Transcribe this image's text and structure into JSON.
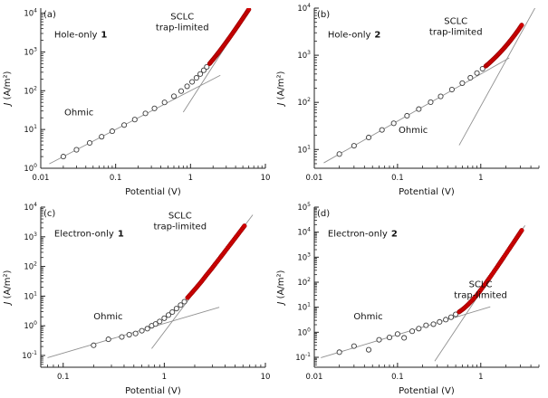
{
  "figure": {
    "background": "#ffffff",
    "xlabel": "Potential (V)",
    "ylabel_italic": "J",
    "ylabel_rest": " (A/m²)",
    "colors": {
      "red_marker": "#d40000",
      "red_marker_stroke": "#8f0000",
      "open_marker_stroke": "#3c3c3c",
      "fit_line": "#909090",
      "axis": "#222222",
      "text": "#111111"
    }
  },
  "chart_data": [
    {
      "id": "a",
      "type": "scatter",
      "log_x": true,
      "log_y": true,
      "panel_label": "(a)",
      "device_prefix": "Hole-only",
      "device_number": "1",
      "xlabel": "Potential (V)",
      "ylabel": "J (A/m²)",
      "xlim": [
        0.01,
        10
      ],
      "ylim": [
        1,
        13500
      ],
      "x_ticks": [
        {
          "v": 0.01,
          "label": "0.01"
        },
        {
          "v": 0.1,
          "label": "0.1"
        },
        {
          "v": 1,
          "label": "1"
        },
        {
          "v": 10,
          "label": "10"
        }
      ],
      "y_tick_exponents": [
        0,
        1,
        2,
        3,
        4
      ],
      "series": [
        {
          "name": "ohmic-region-data",
          "marker": "open-circle",
          "points": [
            [
              0.02,
              2.0
            ],
            [
              0.03,
              3.0
            ],
            [
              0.045,
              4.5
            ],
            [
              0.065,
              6.5
            ],
            [
              0.09,
              9.0
            ],
            [
              0.13,
              13
            ],
            [
              0.18,
              18
            ],
            [
              0.25,
              26
            ],
            [
              0.33,
              35
            ],
            [
              0.45,
              50
            ],
            [
              0.6,
              72
            ],
            [
              0.75,
              98
            ],
            [
              0.9,
              130
            ],
            [
              1.05,
              169
            ],
            [
              1.2,
              215
            ],
            [
              1.35,
              270
            ],
            [
              1.5,
              336
            ],
            [
              1.65,
              412
            ]
          ]
        },
        {
          "name": "sclc-region-data",
          "marker": "filled-red-circle",
          "points": [
            [
              1.8,
              501
            ],
            [
              2.0,
              640
            ],
            [
              2.2,
              806
            ],
            [
              2.4,
              1000
            ],
            [
              2.7,
              1353
            ],
            [
              3.0,
              1785
            ],
            [
              3.3,
              2306
            ],
            [
              3.7,
              3156
            ],
            [
              4.1,
              4200
            ],
            [
              4.5,
              5462
            ],
            [
              5.0,
              7375
            ],
            [
              5.5,
              9701
            ],
            [
              6.0,
              12480
            ]
          ]
        }
      ],
      "fit_lines": [
        {
          "name": "ohmic-fit",
          "p1": [
            0.013,
            1.3
          ],
          "p2": [
            2.5,
            250
          ]
        },
        {
          "name": "sclc-fit",
          "p1": [
            0.8,
            28
          ],
          "p2": [
            6.8,
            17300
          ]
        }
      ],
      "annotations": [
        {
          "name": "sclc-annotation",
          "lines": [
            "SCLC",
            "trap-limited"
          ],
          "fx": 0.63,
          "fy": 0.07
        },
        {
          "name": "ohmic-annotation",
          "lines": [
            "Ohmic"
          ],
          "fx": 0.17,
          "fy": 0.67
        }
      ]
    },
    {
      "id": "b",
      "type": "scatter",
      "log_x": true,
      "log_y": true,
      "panel_label": "(b)",
      "device_prefix": "Hole-only",
      "device_number": "2",
      "xlabel": "Potential (V)",
      "ylabel": "J (A/m²)",
      "xlim": [
        0.01,
        5
      ],
      "ylim": [
        4,
        10000
      ],
      "x_ticks": [
        {
          "v": 0.01,
          "label": "0.01"
        },
        {
          "v": 0.1,
          "label": "0.1"
        },
        {
          "v": 1,
          "label": "1"
        }
      ],
      "y_tick_exponents": [
        1,
        2,
        3,
        4
      ],
      "series": [
        {
          "name": "ohmic-region-data",
          "marker": "open-circle",
          "points": [
            [
              0.02,
              8
            ],
            [
              0.03,
              12
            ],
            [
              0.045,
              18
            ],
            [
              0.065,
              26
            ],
            [
              0.09,
              36
            ],
            [
              0.13,
              52
            ],
            [
              0.18,
              72
            ],
            [
              0.25,
              101
            ],
            [
              0.33,
              134
            ],
            [
              0.45,
              187
            ],
            [
              0.6,
              256
            ],
            [
              0.75,
              333
            ],
            [
              0.9,
              419
            ],
            [
              1.05,
              517
            ]
          ]
        },
        {
          "name": "sclc-region-data",
          "marker": "filled-red-circle",
          "points": [
            [
              1.15,
              590
            ],
            [
              1.25,
              669
            ],
            [
              1.4,
              805
            ],
            [
              1.55,
              958
            ],
            [
              1.7,
              1134
            ],
            [
              1.9,
              1407
            ],
            [
              2.1,
              1727
            ],
            [
              2.3,
              2106
            ],
            [
              2.55,
              2668
            ],
            [
              2.8,
              3342
            ],
            [
              3.1,
              4358
            ]
          ]
        }
      ],
      "fit_lines": [
        {
          "name": "ohmic-fit",
          "p1": [
            0.013,
            5.2
          ],
          "p2": [
            2.2,
            880
          ]
        },
        {
          "name": "sclc-fit",
          "p1": [
            0.55,
            12.3
          ],
          "p2": [
            4.5,
            10200
          ]
        }
      ],
      "annotations": [
        {
          "name": "sclc-annotation",
          "lines": [
            "SCLC",
            "trap-limited"
          ],
          "fx": 0.63,
          "fy": 0.1
        },
        {
          "name": "ohmic-annotation",
          "lines": [
            "Ohmic"
          ],
          "fx": 0.44,
          "fy": 0.78
        }
      ]
    },
    {
      "id": "c",
      "type": "scatter",
      "log_x": true,
      "log_y": true,
      "panel_label": "(c)",
      "device_prefix": "Electron-only",
      "device_number": "1",
      "xlabel": "Potential (V)",
      "ylabel": "J (A/m²)",
      "xlim": [
        0.06,
        10
      ],
      "ylim": [
        0.04,
        10000
      ],
      "x_ticks": [
        {
          "v": 0.1,
          "label": "0.1"
        },
        {
          "v": 1,
          "label": "1"
        },
        {
          "v": 10,
          "label": "10"
        }
      ],
      "y_tick_exponents": [
        -1,
        0,
        1,
        2,
        3,
        4
      ],
      "series": [
        {
          "name": "ohmic-region-data",
          "marker": "open-circle",
          "points": [
            [
              0.2,
              0.22
            ],
            [
              0.28,
              0.35
            ],
            [
              0.38,
              0.42
            ],
            [
              0.45,
              0.5
            ],
            [
              0.52,
              0.55
            ],
            [
              0.6,
              0.68
            ],
            [
              0.68,
              0.8
            ],
            [
              0.75,
              1.0
            ],
            [
              0.82,
              1.15
            ],
            [
              0.9,
              1.4
            ],
            [
              1.0,
              1.8
            ],
            [
              1.1,
              2.3
            ],
            [
              1.2,
              2.9
            ],
            [
              1.32,
              3.8
            ],
            [
              1.45,
              5.0
            ],
            [
              1.58,
              6.5
            ]
          ]
        },
        {
          "name": "sclc-region-data",
          "marker": "filled-red-circle",
          "points": [
            [
              1.7,
              8.9
            ],
            [
              1.9,
              13.6
            ],
            [
              2.1,
              20.2
            ],
            [
              2.35,
              32
            ],
            [
              2.6,
              50
            ],
            [
              2.9,
              79
            ],
            [
              3.2,
              122
            ],
            [
              3.6,
              205
            ],
            [
              4.0,
              327
            ],
            [
              4.5,
              554
            ],
            [
              5.0,
              886
            ],
            [
              5.6,
              1470
            ],
            [
              6.2,
              2326
            ]
          ]
        }
      ],
      "fit_lines": [
        {
          "name": "ohmic-fit",
          "p1": [
            0.07,
            0.084
          ],
          "p2": [
            3.5,
            4.2
          ]
        },
        {
          "name": "sclc-fit",
          "p1": [
            0.75,
            0.17
          ],
          "p2": [
            7.5,
            5500
          ]
        }
      ],
      "annotations": [
        {
          "name": "sclc-annotation",
          "lines": [
            "SCLC",
            "trap-limited"
          ],
          "fx": 0.62,
          "fy": 0.07
        },
        {
          "name": "ohmic-annotation",
          "lines": [
            "Ohmic"
          ],
          "fx": 0.3,
          "fy": 0.7
        }
      ]
    },
    {
      "id": "d",
      "type": "scatter",
      "log_x": true,
      "log_y": true,
      "panel_label": "(d)",
      "device_prefix": "Electron-only",
      "device_number": "2",
      "xlabel": "Potential (V)",
      "ylabel": "J (A/m²)",
      "xlim": [
        0.01,
        5
      ],
      "ylim": [
        0.04,
        100000
      ],
      "x_ticks": [
        {
          "v": 0.01,
          "label": "0.01"
        },
        {
          "v": 0.1,
          "label": "0.1"
        },
        {
          "v": 1,
          "label": "1"
        }
      ],
      "y_tick_exponents": [
        -1,
        0,
        1,
        2,
        3,
        4,
        5
      ],
      "series": [
        {
          "name": "ohmic-region-data",
          "marker": "open-circle",
          "points": [
            [
              0.02,
              0.16
            ],
            [
              0.03,
              0.28
            ],
            [
              0.045,
              0.2
            ],
            [
              0.06,
              0.5
            ],
            [
              0.08,
              0.62
            ],
            [
              0.1,
              0.85
            ],
            [
              0.12,
              0.6
            ],
            [
              0.15,
              1.1
            ],
            [
              0.18,
              1.4
            ],
            [
              0.22,
              1.9
            ],
            [
              0.27,
              2.1
            ],
            [
              0.32,
              2.6
            ],
            [
              0.38,
              3.2
            ],
            [
              0.44,
              4.0
            ],
            [
              0.5,
              5.2
            ]
          ]
        },
        {
          "name": "sclc-region-data",
          "marker": "filled-red-circle",
          "points": [
            [
              0.55,
              6.5
            ],
            [
              0.62,
              8.7
            ],
            [
              0.7,
              12.5
            ],
            [
              0.8,
              19.8
            ],
            [
              0.9,
              31
            ],
            [
              1.0,
              49
            ],
            [
              1.15,
              92
            ],
            [
              1.3,
              163
            ],
            [
              1.5,
              323
            ],
            [
              1.7,
              596
            ],
            [
              1.9,
              1030
            ],
            [
              2.2,
              2130
            ],
            [
              2.5,
              4020
            ],
            [
              2.8,
              7070
            ],
            [
              3.1,
              11750
            ]
          ]
        }
      ],
      "fit_lines": [
        {
          "name": "ohmic-fit",
          "p1": [
            0.012,
            0.096
          ],
          "p2": [
            1.3,
            10.4
          ]
        },
        {
          "name": "sclc-fit",
          "p1": [
            0.28,
            0.07
          ],
          "p2": [
            3.4,
            18600
          ]
        }
      ],
      "annotations": [
        {
          "name": "sclc-annotation",
          "lines": [
            "SCLC",
            "trap-limited"
          ],
          "fx": 0.74,
          "fy": 0.5
        },
        {
          "name": "ohmic-annotation",
          "lines": [
            "Ohmic"
          ],
          "fx": 0.24,
          "fy": 0.7
        }
      ]
    }
  ]
}
